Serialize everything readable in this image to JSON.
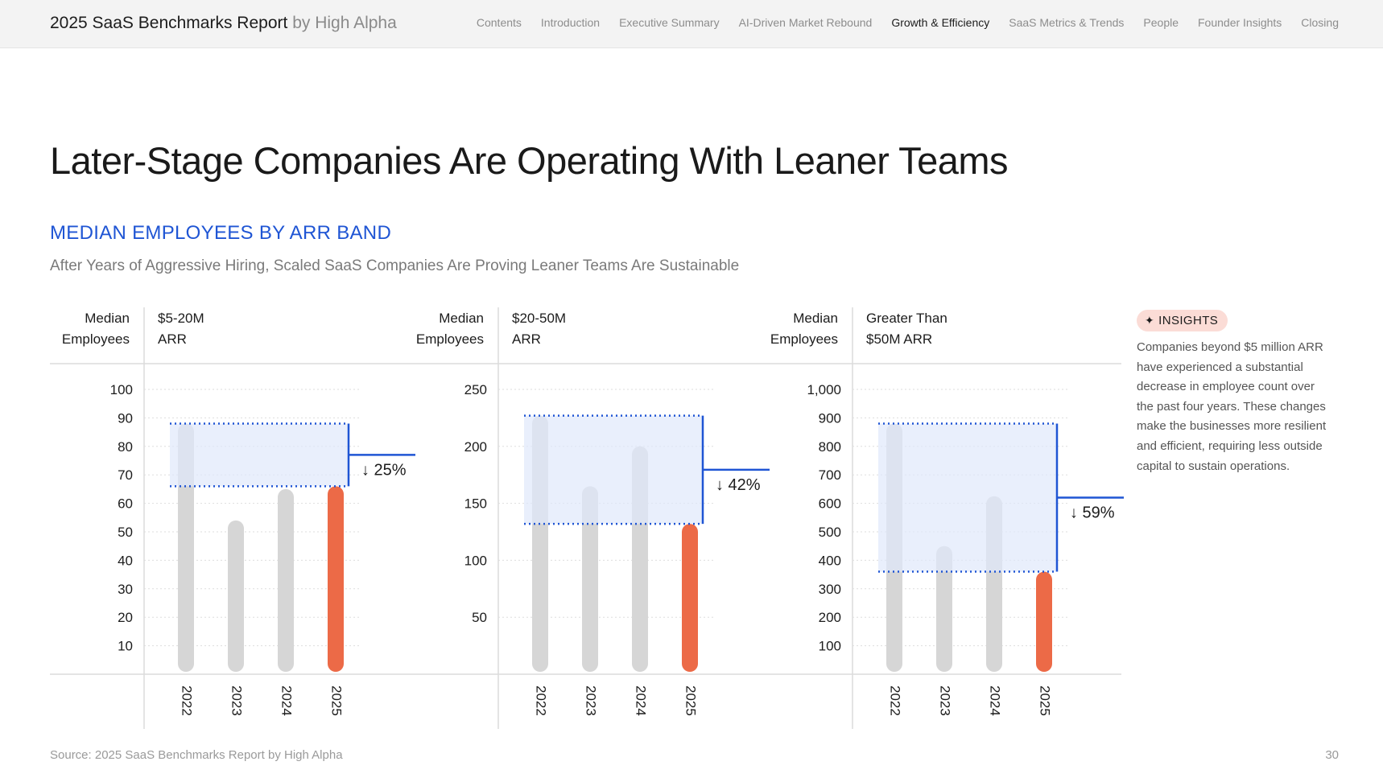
{
  "header": {
    "brand": "2025 SaaS Benchmarks Report",
    "brand_by": "by High Alpha",
    "nav": [
      {
        "label": "Contents",
        "active": false
      },
      {
        "label": "Introduction",
        "active": false
      },
      {
        "label": "Executive Summary",
        "active": false
      },
      {
        "label": "AI-Driven Market Rebound",
        "active": false
      },
      {
        "label": "Growth & Efficiency",
        "active": true
      },
      {
        "label": "SaaS Metrics & Trends",
        "active": false
      },
      {
        "label": "People",
        "active": false
      },
      {
        "label": "Founder Insights",
        "active": false
      },
      {
        "label": "Closing",
        "active": false
      }
    ]
  },
  "page": {
    "title": "Later-Stage Companies Are Operating With Leaner Teams",
    "subtitle": "MEDIAN EMPLOYEES BY ARR BAND",
    "caption": "After Years of Aggressive Hiring, Scaled SaaS Companies Are Proving Leaner Teams Are Sustainable"
  },
  "insights": {
    "badge": "INSIGHTS",
    "text": "Companies beyond $5 million ARR have experienced a substantial decrease in employee count over the past four years. These changes make the businesses more resilient and efficient, requiring less outside capital to sustain operations."
  },
  "colors": {
    "bar_gray": "#d6d6d6",
    "bar_highlight": "#ec6a47",
    "accent_blue": "#1f55d4",
    "band_fill": "#dfe8fb"
  },
  "chart_data": [
    {
      "type": "bar",
      "ylabel_line1": "Median",
      "ylabel_line2": "Employees",
      "band_line1": "$5-20M",
      "band_line2": "ARR",
      "categories": [
        "2022",
        "2023",
        "2024",
        "2025"
      ],
      "values": [
        88,
        54,
        65,
        66
      ],
      "ylim": [
        0,
        100
      ],
      "yticks": [
        10,
        20,
        30,
        40,
        50,
        60,
        70,
        80,
        90,
        100
      ],
      "ytick_labels": [
        "10",
        "20",
        "30",
        "40",
        "50",
        "60",
        "70",
        "80",
        "90",
        "100"
      ],
      "change_label": "↓ 25%"
    },
    {
      "type": "bar",
      "ylabel_line1": "Median",
      "ylabel_line2": "Employees",
      "band_line1": "$20-50M",
      "band_line2": "ARR",
      "categories": [
        "2022",
        "2023",
        "2024",
        "2025"
      ],
      "values": [
        227,
        165,
        200,
        132
      ],
      "ylim": [
        0,
        250
      ],
      "yticks": [
        50,
        100,
        150,
        200,
        250
      ],
      "ytick_labels": [
        "50",
        "100",
        "150",
        "200",
        "250"
      ],
      "change_label": "↓ 42%"
    },
    {
      "type": "bar",
      "ylabel_line1": "Median",
      "ylabel_line2": "Employees",
      "band_line1": "Greater Than",
      "band_line2": "$50M ARR",
      "categories": [
        "2022",
        "2023",
        "2024",
        "2025"
      ],
      "values": [
        880,
        450,
        625,
        360
      ],
      "ylim": [
        0,
        1000
      ],
      "yticks": [
        100,
        200,
        300,
        400,
        500,
        600,
        700,
        800,
        900,
        1000
      ],
      "ytick_labels": [
        "100",
        "200",
        "300",
        "400",
        "500",
        "600",
        "700",
        "800",
        "900",
        "1,000"
      ],
      "change_label": "↓ 59%"
    }
  ],
  "footer": {
    "source": "Source: 2025 SaaS Benchmarks Report by High Alpha",
    "page_number": "30"
  }
}
